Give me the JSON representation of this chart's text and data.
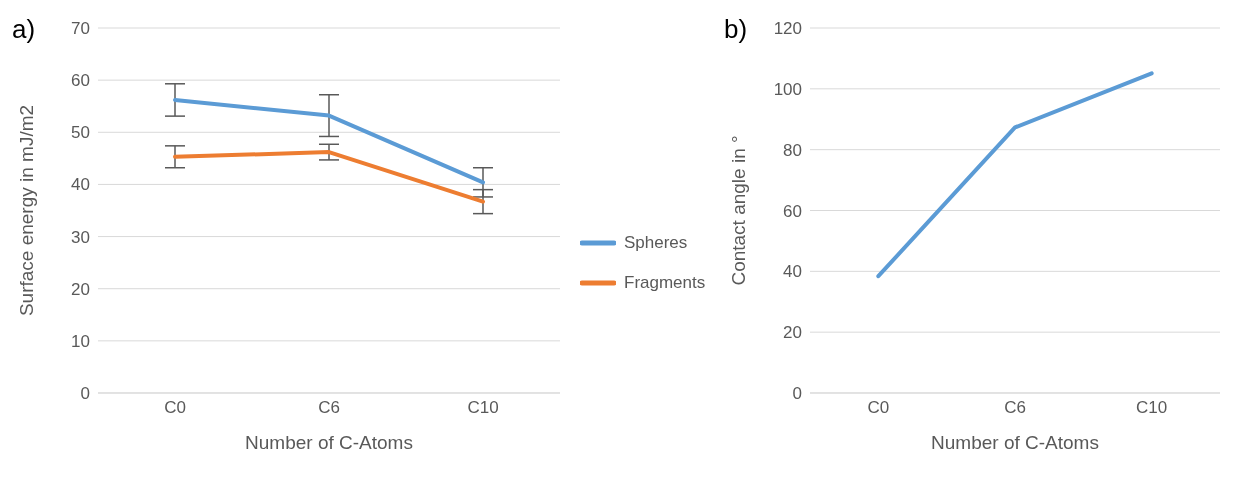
{
  "chart_data": [
    {
      "type": "line",
      "title": "a)",
      "xlabel": "Number of C-Atoms",
      "ylabel": "Surface energy in mJ/m2",
      "categories": [
        "C0",
        "C6",
        "C10"
      ],
      "series": [
        {
          "name": "Spheres",
          "color": "#5b9bd5",
          "values": [
            56.2,
            53.2,
            40.4
          ],
          "errors": [
            3.1,
            4,
            2.8
          ]
        },
        {
          "name": "Fragments",
          "color": "#ed7d31",
          "values": [
            45.3,
            46.2,
            36.7
          ],
          "errors": [
            2.1,
            1.5,
            2.3
          ]
        }
      ],
      "ylim": [
        0,
        70
      ],
      "yticks": [
        0,
        10,
        20,
        30,
        40,
        50,
        60,
        70
      ],
      "grid": "y",
      "legend": "right",
      "marker": "none",
      "line_style": "solid"
    },
    {
      "type": "line",
      "title": "b)",
      "xlabel": "Number of C-Atoms",
      "ylabel": "Contact angle in °",
      "categories": [
        "C0",
        "C6",
        "C10"
      ],
      "series": [
        {
          "color": "#5b9bd5",
          "values": [
            38.4,
            87.3,
            105.1
          ]
        }
      ],
      "ylim": [
        0,
        120
      ],
      "yticks": [
        0,
        20,
        40,
        60,
        80,
        100,
        120
      ],
      "grid": "y",
      "marker": "none",
      "line_style": "solid"
    }
  ]
}
